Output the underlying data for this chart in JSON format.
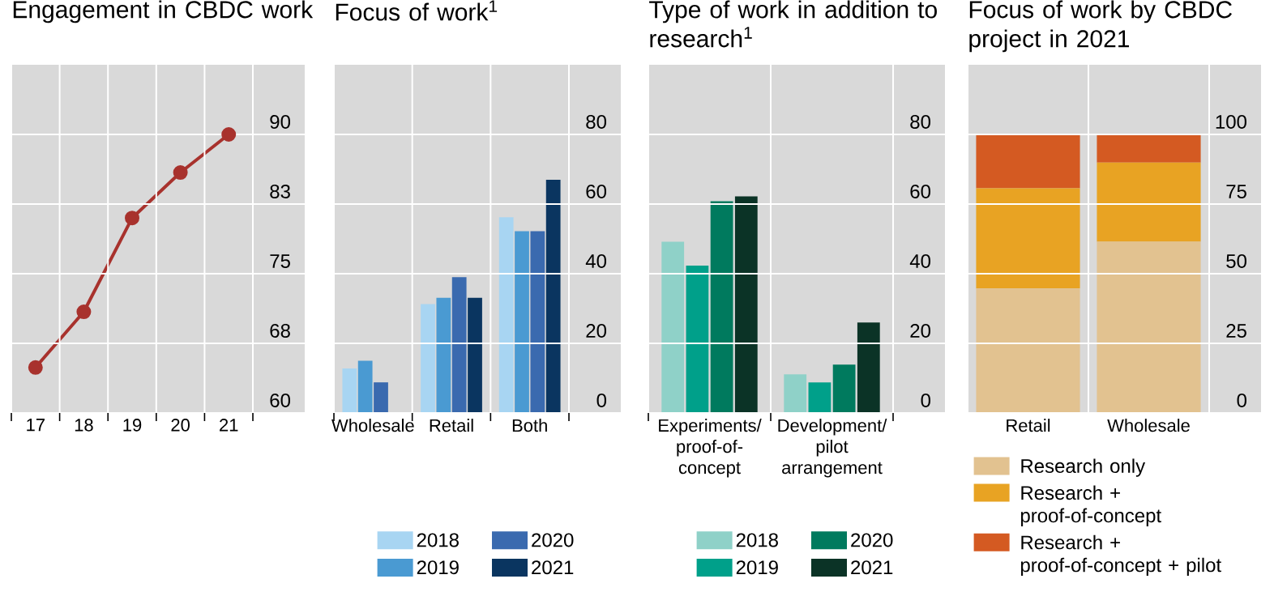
{
  "chart_data": [
    {
      "type": "line",
      "title": "Engagement in CBDC work",
      "categories": [
        "17",
        "18",
        "19",
        "20",
        "21"
      ],
      "series": [
        {
          "color": "#a8322d",
          "values": [
            64.9,
            70.9,
            81.0,
            85.9,
            90.0
          ]
        }
      ],
      "ylim": [
        60,
        97.5
      ],
      "yticks": [
        60,
        {
          "value": 67.5,
          "label": "68"
        },
        75,
        {
          "value": 82.5,
          "label": "83"
        },
        90
      ],
      "grid": true,
      "marker": "circle"
    },
    {
      "type": "bar",
      "title": "Focus of work$^{1}$",
      "categories": [
        "Wholesale",
        "Retail",
        "Both"
      ],
      "series": [
        {
          "name": "2018",
          "color": "#a8d5f2",
          "values": [
            12.8,
            31.3,
            56.2
          ]
        },
        {
          "name": "2019",
          "color": "#4a9ad2",
          "values": [
            15.0,
            33.1,
            52.2
          ]
        },
        {
          "name": "2020",
          "color": "#3a6aaf",
          "values": [
            8.8,
            39.0,
            52.2
          ]
        },
        {
          "name": "2021",
          "color": "#0a3560",
          "values": [
            null,
            33.1,
            67.0
          ]
        }
      ],
      "ylim": [
        0,
        100
      ],
      "yticks": [
        0,
        20,
        40,
        60,
        80
      ],
      "grid": true,
      "legend": "bottom"
    },
    {
      "type": "bar",
      "title": "Type of work in addition to research$^{1}$",
      "categories": [
        "Experiments/ proof-of-concept",
        "Development/ pilot arrangement"
      ],
      "series": [
        {
          "name": "2018",
          "color": "#8fd1c8",
          "values": [
            49.2,
            11.1
          ]
        },
        {
          "name": "2019",
          "color": "#00a08a",
          "values": [
            42.3,
            8.8
          ]
        },
        {
          "name": "2020",
          "color": "#007a5e",
          "values": [
            60.8,
            13.9
          ]
        },
        {
          "name": "2021",
          "color": "#0b3326",
          "values": [
            62.2,
            26.0
          ]
        }
      ],
      "ylim": [
        0,
        100
      ],
      "yticks": [
        0,
        20,
        40,
        60,
        80
      ],
      "grid": true,
      "legend": "bottom"
    },
    {
      "type": "bar",
      "stacked": true,
      "title": "Focus of work by CBDC project in 2021",
      "categories": [
        "Retail",
        "Wholesale"
      ],
      "series": [
        {
          "name": "Research only",
          "color": "#e2c290",
          "values": [
            44.7,
            61.5
          ]
        },
        {
          "name": "Research + proof-of-concept",
          "color": "#e8a323",
          "values": [
            36.0,
            28.4
          ]
        },
        {
          "name": "Research + proof-of-concept + pilot",
          "color": "#d45a22",
          "values": [
            19.3,
            10.1
          ]
        }
      ],
      "ylim": [
        0,
        125
      ],
      "yticks": [
        0,
        25,
        50,
        75,
        100
      ],
      "grid": true,
      "legend": "bottom"
    }
  ]
}
